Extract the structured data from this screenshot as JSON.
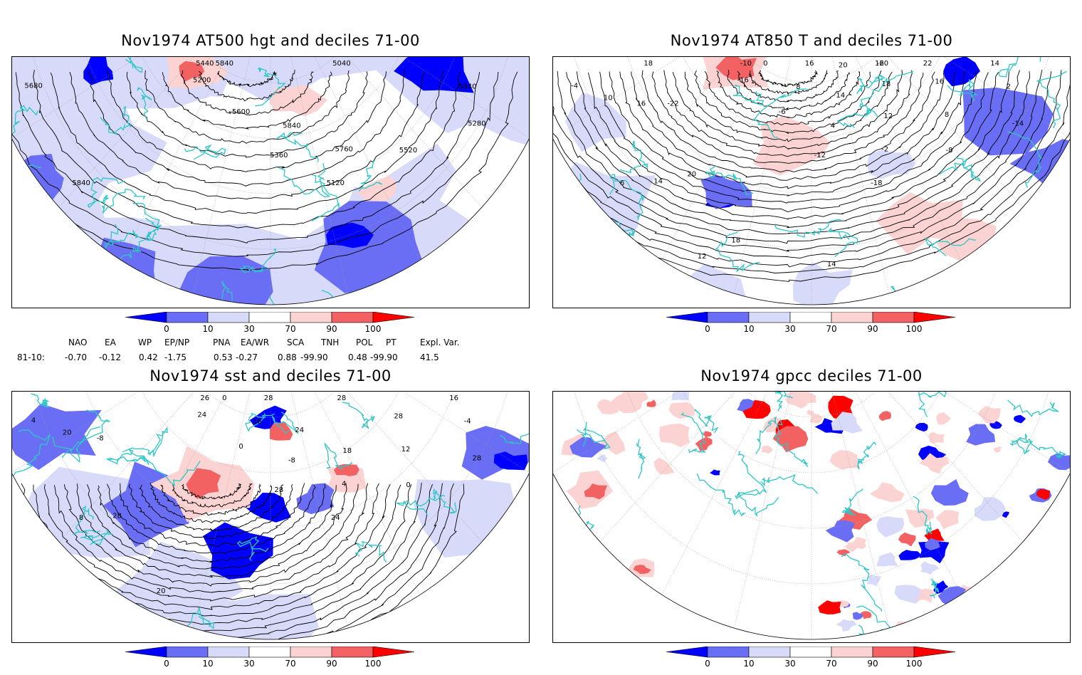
{
  "panels": [
    {
      "title": "Nov1974 AT500 hgt and deciles 71-00",
      "contour_labels": [
        "5040",
        "5120",
        "5200",
        "5280",
        "5360",
        "5440",
        "5520",
        "5600",
        "5680",
        "5760",
        "5840",
        "5840",
        "5840",
        "5840"
      ]
    },
    {
      "title": "Nov1974 AT850 T and deciles 71-00",
      "contour_labels": [
        "-20",
        "-18",
        "-16",
        "-14",
        "-12",
        "-10",
        "-8",
        "-6",
        "-4",
        "-2",
        "0",
        "2",
        "4",
        "6",
        "8",
        "8",
        "10",
        "12",
        "12",
        "14",
        "14",
        "14",
        "16",
        "16",
        "16",
        "18",
        "18",
        "18",
        "20",
        "20",
        "22",
        "14",
        "-22",
        "16"
      ]
    },
    {
      "title": "Nov1974 sst and deciles 71-00",
      "contour_labels": [
        "28",
        "24",
        "24",
        "28",
        "28",
        "26",
        "0",
        "0",
        "4",
        "4",
        "0",
        "-4",
        "-8",
        "8",
        "12",
        "16",
        "20",
        "18",
        "20",
        "16",
        "24",
        "28",
        "28",
        "28",
        "-8"
      ]
    },
    {
      "title": "Nov1974 gpcc deciles 71-00",
      "contour_labels": []
    }
  ],
  "colorbar": {
    "ticks": [
      "0",
      "10",
      "30",
      "70",
      "90",
      "100"
    ],
    "colors": [
      "#0000ff",
      "#6a6ef5",
      "#d8daf9",
      "#ffffff",
      "#fcd3d3",
      "#f26262",
      "#ff0000"
    ]
  },
  "indices": {
    "headers": [
      "NAO",
      "EA",
      "WP",
      "EP/NP",
      "PNA",
      "EA/WR",
      "SCA",
      "TNH",
      "POL",
      "PT",
      "Expl. Var."
    ],
    "row_label": "81-10:",
    "values": [
      "-0.70",
      "-0.12",
      "0.42",
      "-1.75",
      "0.53",
      "-0.27",
      "0.88",
      "-99.90",
      "0.48",
      "-99.90",
      "41.5"
    ]
  },
  "colors": {
    "coastline": "#2ec6c6",
    "contour": "#000000",
    "grid": "#9a9a9a"
  }
}
